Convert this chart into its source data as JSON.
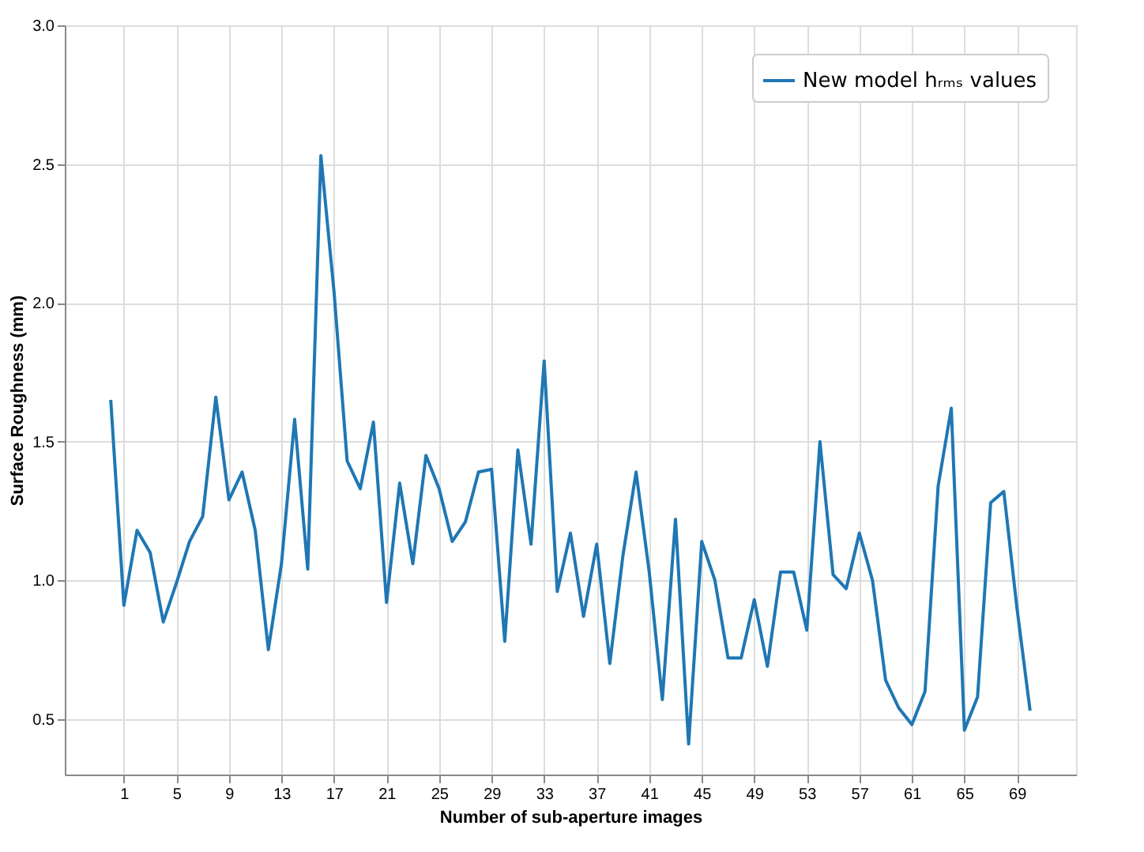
{
  "chart_data": {
    "type": "line",
    "xlabel": "Number of sub-aperture images",
    "ylabel": "Surface Roughness (mm)",
    "x": [
      0,
      1,
      2,
      3,
      4,
      5,
      6,
      7,
      8,
      9,
      10,
      11,
      12,
      13,
      14,
      15,
      16,
      17,
      18,
      19,
      20,
      21,
      22,
      23,
      24,
      25,
      26,
      27,
      28,
      29,
      30,
      31,
      32,
      33,
      34,
      35,
      36,
      37,
      38,
      39,
      40,
      41,
      42,
      43,
      44,
      45,
      46,
      47,
      48,
      49,
      50,
      51,
      52,
      53,
      54,
      55,
      56,
      57,
      58,
      59,
      60,
      61,
      62,
      63,
      64,
      65,
      66,
      67,
      68,
      69,
      70
    ],
    "series": [
      {
        "name": "New model hᵣₘₛ values",
        "color": "#1f77b4",
        "values": [
          1.65,
          0.91,
          1.18,
          1.1,
          0.85,
          0.99,
          1.14,
          1.23,
          1.66,
          1.29,
          1.39,
          1.18,
          0.75,
          1.06,
          1.58,
          1.04,
          2.53,
          2.04,
          1.43,
          1.33,
          1.57,
          0.92,
          1.35,
          1.06,
          1.45,
          1.33,
          1.14,
          1.21,
          1.39,
          1.4,
          0.78,
          1.47,
          1.13,
          1.79,
          0.96,
          1.17,
          0.87,
          1.13,
          0.7,
          1.09,
          1.39,
          1.03,
          0.57,
          1.22,
          0.41,
          1.14,
          1.0,
          0.72,
          0.72,
          0.93,
          0.69,
          1.03,
          1.03,
          0.82,
          1.5,
          1.02,
          0.97,
          1.17,
          1.0,
          0.64,
          0.54,
          0.48,
          0.6,
          1.34,
          1.62,
          0.46,
          0.58,
          1.28,
          1.32,
          0.9,
          0.53
        ]
      }
    ],
    "xlim": [
      -3.5,
      73.5
    ],
    "xticks": [
      1,
      5,
      9,
      13,
      17,
      21,
      25,
      29,
      33,
      37,
      41,
      45,
      49,
      53,
      57,
      61,
      65,
      69
    ],
    "ylim": [
      0.3,
      3.0
    ],
    "yticks": [
      0.5,
      {
        "value": 1,
        "label": "1.0"
      },
      1.5,
      {
        "value": 2,
        "label": "2.0"
      },
      2.5,
      {
        "value": 3,
        "label": "3.0"
      }
    ],
    "grid": true,
    "legend": "top right",
    "line_style": "solid",
    "marker": "none"
  }
}
